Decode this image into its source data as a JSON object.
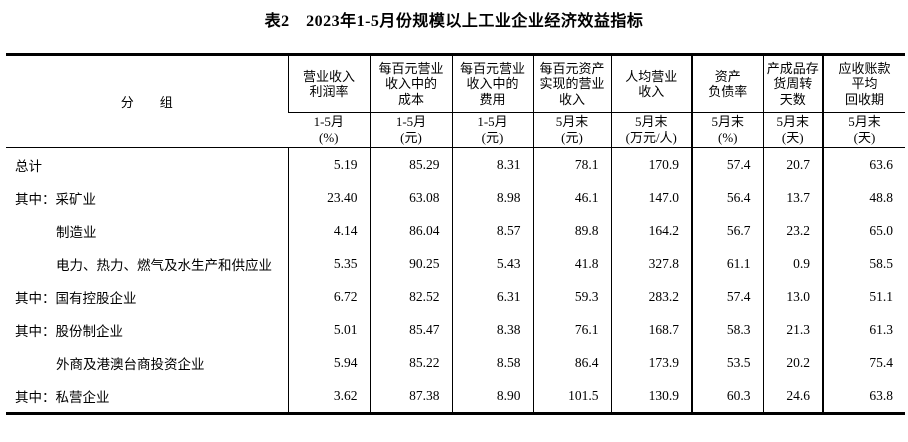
{
  "title": "表2　2023年1-5月份规模以上工业企业经济效益指标",
  "table": {
    "group_header": "分　　组",
    "columns": [
      {
        "title": "营业收入\n利润率",
        "period": "1-5月",
        "unit": "(%)"
      },
      {
        "title": "每百元营业\n收入中的\n成本",
        "period": "1-5月",
        "unit": "(元)"
      },
      {
        "title": "每百元营业\n收入中的\n费用",
        "period": "1-5月",
        "unit": "(元)"
      },
      {
        "title": "每百元资产\n实现的营业\n收入",
        "period": "5月末",
        "unit": "(元)"
      },
      {
        "title": "人均营业\n收入",
        "period": "5月末",
        "unit": "(万元/人)"
      },
      {
        "title": "资产\n负债率",
        "period": "5月末",
        "unit": "(%)"
      },
      {
        "title": "产成品存\n货周转\n天数",
        "period": "5月末",
        "unit": "(天)"
      },
      {
        "title": "应收账款\n平均\n回收期",
        "period": "5月末",
        "unit": "(天)"
      }
    ],
    "rows": [
      {
        "label": "总计",
        "indent": false,
        "values": [
          "5.19",
          "85.29",
          "8.31",
          "78.1",
          "170.9",
          "57.4",
          "20.7",
          "63.6"
        ]
      },
      {
        "label": "其中：采矿业",
        "indent": false,
        "values": [
          "23.40",
          "63.08",
          "8.98",
          "46.1",
          "147.0",
          "56.4",
          "13.7",
          "48.8"
        ]
      },
      {
        "label": "制造业",
        "indent": true,
        "values": [
          "4.14",
          "86.04",
          "8.57",
          "89.8",
          "164.2",
          "56.7",
          "23.2",
          "65.0"
        ]
      },
      {
        "label": "电力、热力、燃气及水生产和供应业",
        "indent": true,
        "values": [
          "5.35",
          "90.25",
          "5.43",
          "41.8",
          "327.8",
          "61.1",
          "0.9",
          "58.5"
        ]
      },
      {
        "label": "其中：国有控股企业",
        "indent": false,
        "values": [
          "6.72",
          "82.52",
          "6.31",
          "59.3",
          "283.2",
          "57.4",
          "13.0",
          "51.1"
        ]
      },
      {
        "label": "其中：股份制企业",
        "indent": false,
        "values": [
          "5.01",
          "85.47",
          "8.38",
          "76.1",
          "168.7",
          "58.3",
          "21.3",
          "61.3"
        ]
      },
      {
        "label": "外商及港澳台商投资企业",
        "indent": true,
        "values": [
          "5.94",
          "85.22",
          "8.58",
          "86.4",
          "173.9",
          "53.5",
          "20.2",
          "75.4"
        ]
      },
      {
        "label": "其中：私营企业",
        "indent": false,
        "values": [
          "3.62",
          "87.38",
          "8.90",
          "101.5",
          "130.9",
          "60.3",
          "24.6",
          "63.8"
        ]
      }
    ]
  }
}
